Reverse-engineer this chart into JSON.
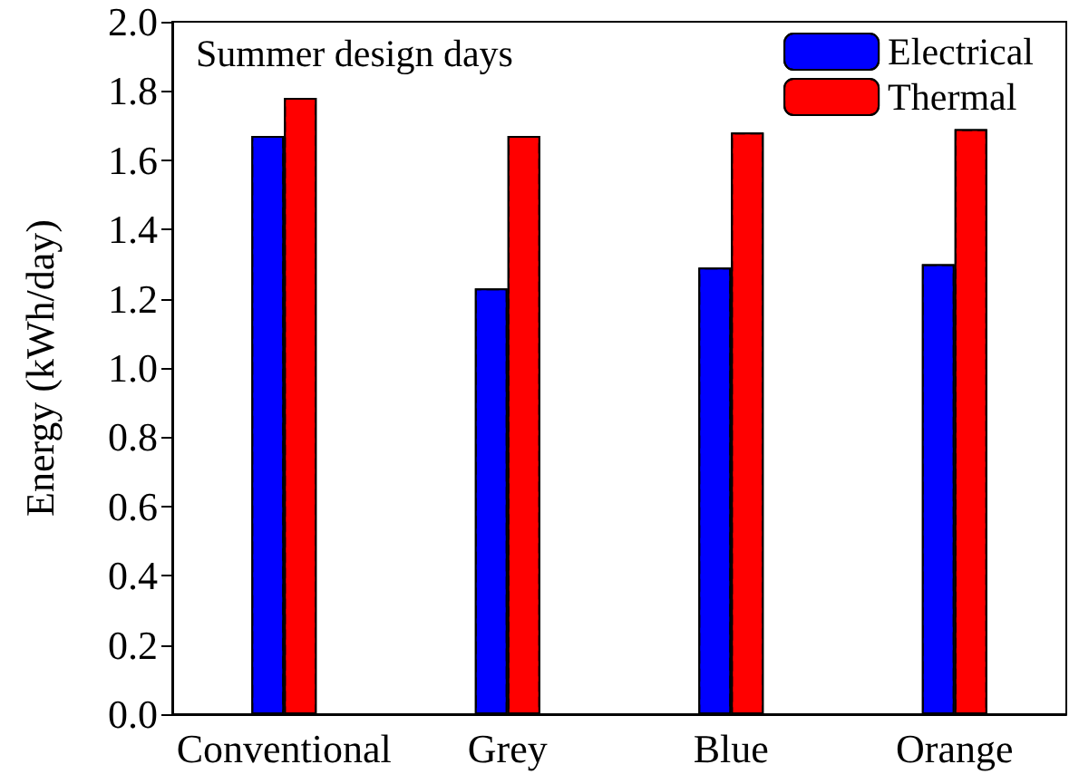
{
  "chart_data": {
    "type": "bar",
    "title": "Summer design days",
    "ylabel": "Energy (kWh/day)",
    "categories": [
      "Conventional",
      "Grey",
      "Blue",
      "Orange"
    ],
    "series": [
      {
        "name": "Electrical",
        "color": "#0000ff",
        "values": [
          1.67,
          1.23,
          1.29,
          1.3
        ]
      },
      {
        "name": "Thermal",
        "color": "#ff0000",
        "values": [
          1.78,
          1.67,
          1.68,
          1.69
        ]
      }
    ],
    "ylim": [
      0,
      2
    ],
    "yticks": [
      {
        "value": 0,
        "label": "0.0"
      },
      0.2,
      0.4,
      0.6,
      0.8,
      {
        "value": 1,
        "label": "1.0"
      },
      1.2,
      1.4,
      1.6,
      1.8,
      {
        "value": 2,
        "label": "2.0"
      }
    ],
    "grid": false,
    "legend": "top right"
  }
}
